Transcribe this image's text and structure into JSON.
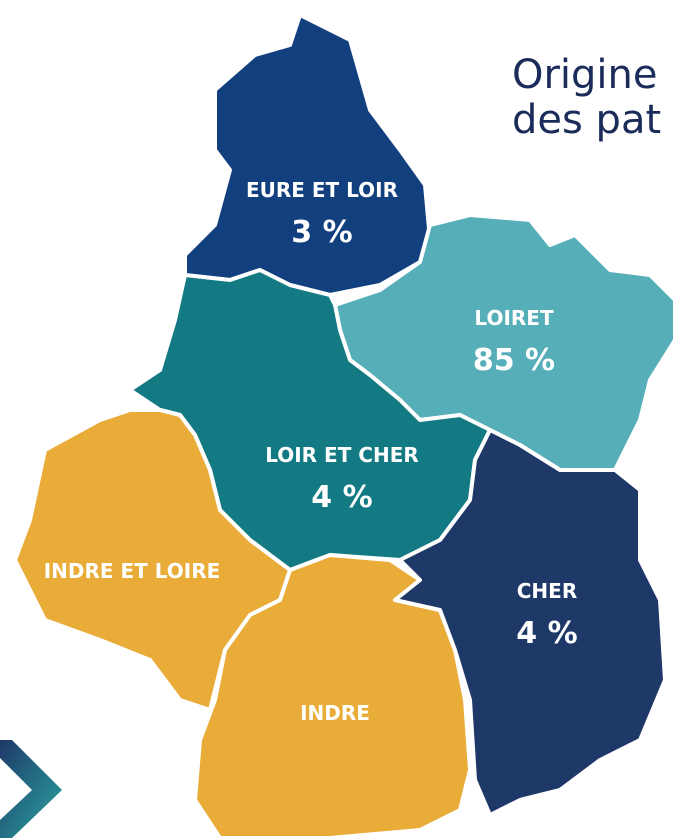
{
  "title": [
    "Origine",
    "des pat"
  ],
  "regions": [
    {
      "name": "EURE ET LOIR",
      "value": 3,
      "value_label": "3 %"
    },
    {
      "name": "LOIRET",
      "value": 85,
      "value_label": "85 %"
    },
    {
      "name": "LOIR ET CHER",
      "value": 4,
      "value_label": "4 %"
    },
    {
      "name": "INDRE ET LOIRE"
    },
    {
      "name": "INDRE"
    },
    {
      "name": "CHER",
      "value": 4,
      "value_label": "4 %"
    }
  ]
}
